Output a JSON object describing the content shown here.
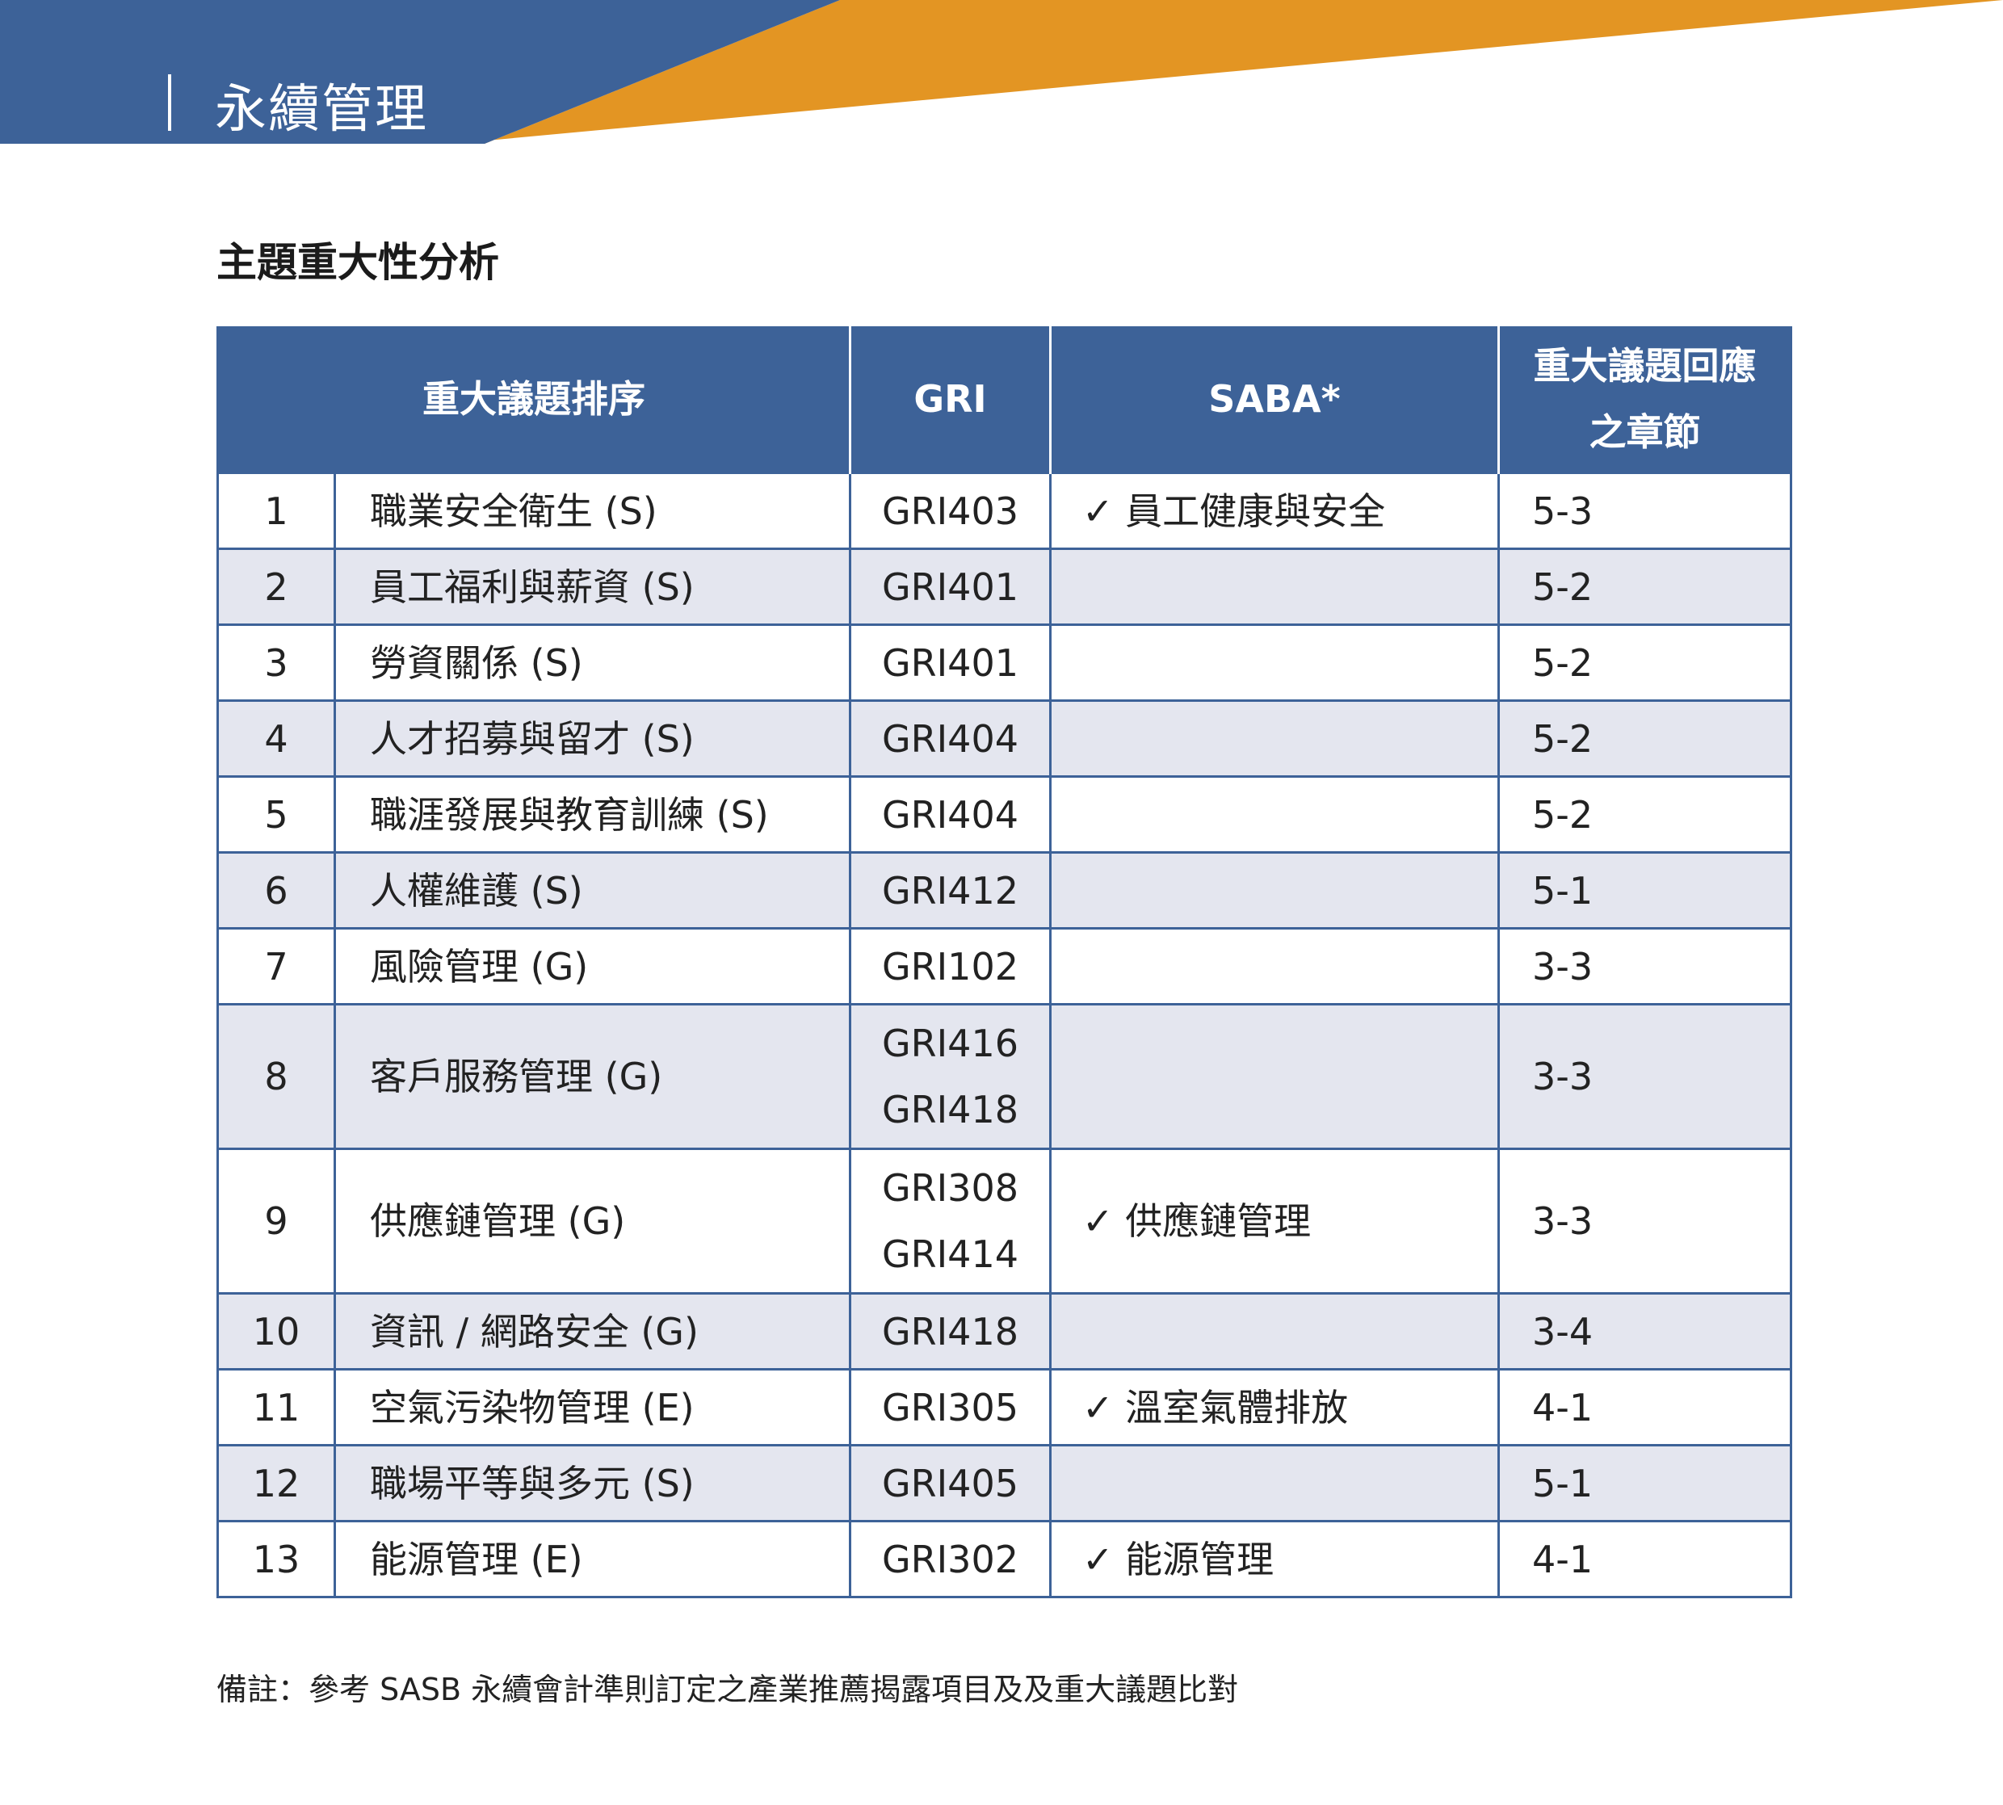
{
  "header": {
    "chapter_title": "永續管理",
    "colors": {
      "blue": "#3d6298",
      "orange": "#e39523"
    }
  },
  "section_title": "主題重大性分析",
  "table": {
    "headers": {
      "issue": "重大議題排序",
      "gri": "GRI",
      "saba": "SABA*",
      "chapter_line1": "重大議題回應",
      "chapter_line2": "之章節"
    },
    "rows": [
      {
        "no": "1",
        "topic": "職業安全衛生 (S)",
        "gri": [
          "GRI403"
        ],
        "saba": "✓ 員工健康與安全",
        "chapter": "5-3"
      },
      {
        "no": "2",
        "topic": "員工福利與薪資 (S)",
        "gri": [
          "GRI401"
        ],
        "saba": "",
        "chapter": "5-2"
      },
      {
        "no": "3",
        "topic": "勞資關係 (S)",
        "gri": [
          "GRI401"
        ],
        "saba": "",
        "chapter": "5-2"
      },
      {
        "no": "4",
        "topic": "人才招募與留才 (S)",
        "gri": [
          "GRI404"
        ],
        "saba": "",
        "chapter": "5-2"
      },
      {
        "no": "5",
        "topic": "職涯發展與教育訓練 (S)",
        "gri": [
          "GRI404"
        ],
        "saba": "",
        "chapter": "5-2"
      },
      {
        "no": "6",
        "topic": "人權維護 (S)",
        "gri": [
          "GRI412"
        ],
        "saba": "",
        "chapter": "5-1"
      },
      {
        "no": "7",
        "topic": "風險管理 (G)",
        "gri": [
          "GRI102"
        ],
        "saba": "",
        "chapter": "3-3"
      },
      {
        "no": "8",
        "topic": "客戶服務管理 (G)",
        "gri": [
          "GRI416",
          "GRI418"
        ],
        "saba": "",
        "chapter": "3-3"
      },
      {
        "no": "9",
        "topic": "供應鏈管理 (G)",
        "gri": [
          "GRI308",
          "GRI414"
        ],
        "saba": "✓ 供應鏈管理",
        "chapter": "3-3"
      },
      {
        "no": "10",
        "topic": "資訊 / 網路安全 (G)",
        "gri": [
          "GRI418"
        ],
        "saba": "",
        "chapter": "3-4"
      },
      {
        "no": "11",
        "topic": "空氣污染物管理 (E)",
        "gri": [
          "GRI305"
        ],
        "saba": "✓ 溫室氣體排放",
        "chapter": "4-1"
      },
      {
        "no": "12",
        "topic": "職場平等與多元 (S)",
        "gri": [
          "GRI405"
        ],
        "saba": "",
        "chapter": "5-1"
      },
      {
        "no": "13",
        "topic": "能源管理 (E)",
        "gri": [
          "GRI302"
        ],
        "saba": "✓ 能源管理",
        "chapter": "4-1"
      }
    ]
  },
  "note": "備註：參考 SASB 永續會計準則訂定之產業推薦揭露項目及及重大議題比對"
}
